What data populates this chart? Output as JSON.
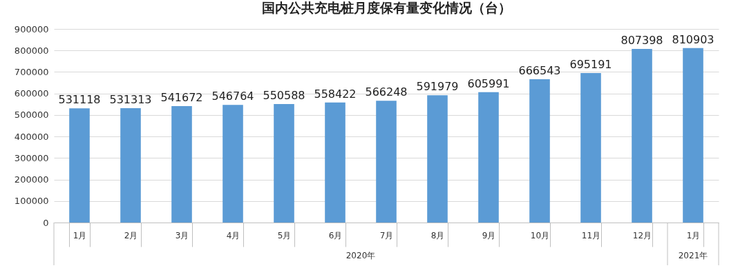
{
  "chart_data": {
    "type": "bar",
    "title": "国内公共充电桩月度保有量变化情况（台）",
    "categories": [
      "1月",
      "2月",
      "3月",
      "4月",
      "5月",
      "6月",
      "7月",
      "8月",
      "9月",
      "10月",
      "11月",
      "12月",
      "1月"
    ],
    "values": [
      531118,
      531313,
      541672,
      546764,
      550588,
      558422,
      566248,
      591979,
      605991,
      666543,
      695191,
      807398,
      810903
    ],
    "color": "#5b9bd5",
    "ylim": [
      0,
      900000
    ],
    "yticks": [
      0,
      100000,
      200000,
      300000,
      400000,
      500000,
      600000,
      700000,
      800000,
      900000
    ],
    "grid": "y",
    "data_labels": true,
    "annotations": [
      "2020年",
      "2021年"
    ]
  }
}
